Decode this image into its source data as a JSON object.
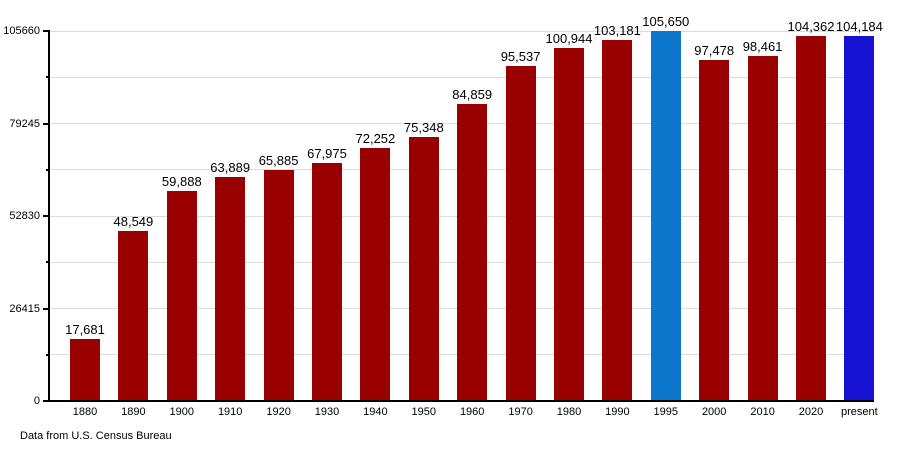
{
  "chart_data": {
    "type": "bar",
    "title": "",
    "xlabel": "",
    "ylabel": "",
    "categories": [
      "1880",
      "1890",
      "1900",
      "1910",
      "1920",
      "1930",
      "1940",
      "1950",
      "1960",
      "1970",
      "1980",
      "1990",
      "1995",
      "2000",
      "2010",
      "2020",
      "present"
    ],
    "values": [
      17681,
      48549,
      59888,
      63889,
      65885,
      67975,
      72252,
      75348,
      84859,
      95537,
      100944,
      103181,
      105650,
      97478,
      98461,
      104362,
      104184
    ],
    "value_labels": [
      "17,681",
      "48,549",
      "59,888",
      "63,889",
      "65,885",
      "67,975",
      "72,252",
      "75,348",
      "84,859",
      "95,537",
      "100,944",
      "103,181",
      "105,650",
      "97,478",
      "98,461",
      "104,362",
      "104,184"
    ],
    "bar_colors": [
      "#990000",
      "#990000",
      "#990000",
      "#990000",
      "#990000",
      "#990000",
      "#990000",
      "#990000",
      "#990000",
      "#990000",
      "#990000",
      "#990000",
      "#0b76cb",
      "#990000",
      "#990000",
      "#990000",
      "#1712d1"
    ],
    "ylim": [
      0,
      105660
    ],
    "ytick_values": [
      0,
      26415,
      52830,
      79245,
      105660
    ],
    "ytick_labels": [
      "0",
      "26415",
      "52830",
      "79245",
      "105660"
    ],
    "minor_tick_values": [
      13207.5,
      39622.5,
      66037.5,
      92452.5
    ],
    "grid": true,
    "legend": "none"
  },
  "colors": {
    "bar_default": "#990000",
    "bar_highlight_1995": "#0b76cb",
    "bar_highlight_present": "#1712d1",
    "gridline": "#dcdcdc",
    "axis": "#000000",
    "background": "#ffffff",
    "label_text": "#000000"
  },
  "footer": {
    "source_note": "Data from U.S. Census Bureau"
  }
}
